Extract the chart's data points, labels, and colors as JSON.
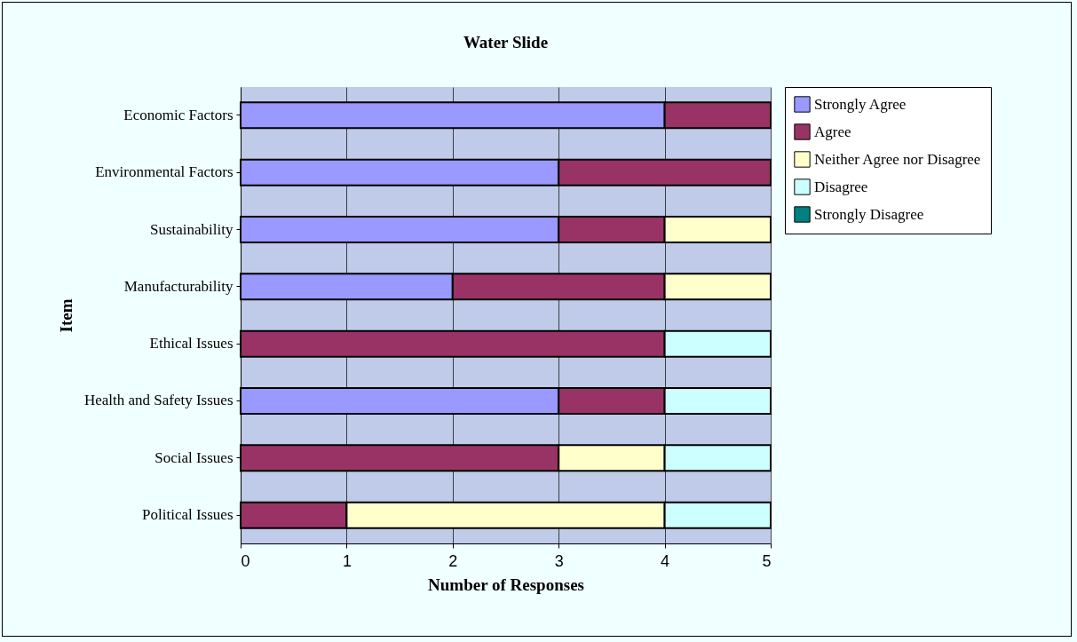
{
  "chart_data": {
    "type": "bar",
    "title": "Water Slide",
    "xlabel": "Number of Responses",
    "ylabel": "Item",
    "orientation": "horizontal",
    "stacked": true,
    "categories": [
      "Economic Factors",
      "Environmental Factors",
      "Sustainability",
      "Manufacturability",
      "Ethical Issues",
      "Health and Safety Issues",
      "Social Issues",
      "Political Issues"
    ],
    "series": [
      {
        "name": "Strongly Agree",
        "color": "#9999ff",
        "values": [
          4,
          3,
          3,
          2,
          null,
          3,
          null,
          null
        ]
      },
      {
        "name": "Agree",
        "color": "#993366",
        "values": [
          1,
          2,
          1,
          2,
          4,
          1,
          3,
          1
        ]
      },
      {
        "name": "Neither Agree nor Disagree",
        "color": "#ffffcc",
        "values": [
          null,
          null,
          1,
          1,
          null,
          null,
          1,
          3
        ]
      },
      {
        "name": "Disagree",
        "color": "#ccffff",
        "values": [
          null,
          null,
          null,
          null,
          1,
          1,
          1,
          1
        ]
      },
      {
        "name": "Strongly Disagree",
        "color": "#008080",
        "values": [
          null,
          null,
          null,
          null,
          null,
          null,
          null,
          null
        ]
      }
    ],
    "xlim": [
      0,
      5
    ],
    "xticks": [
      0,
      1,
      2,
      3,
      4,
      5
    ],
    "grid": "x",
    "legend": "top right"
  }
}
